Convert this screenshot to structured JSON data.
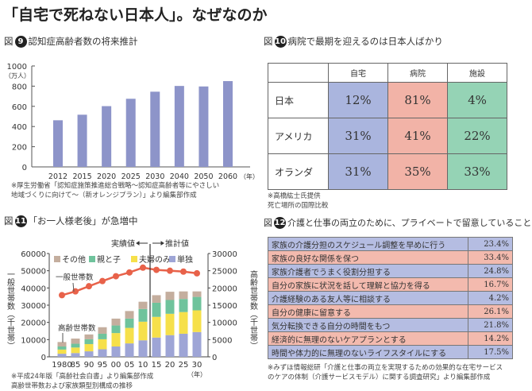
{
  "title": "「自宅で死ねない日本人」。なぜなのか",
  "fig_prefix": "図",
  "fig9": {
    "num": "9",
    "heading": "認知症高齢者数の将来推計",
    "unit": "（万人）",
    "caption1": "※厚生労働省「認知症施策推進総合戦略～認知症高齢者等にやさしい",
    "caption2": "地域づくりに向けて～（新オレンジプラン）」より編集部作成"
  },
  "fig10": {
    "num": "10",
    "heading": "病院で最期を迎えるのは日本人ばかり",
    "columns": [
      "",
      "自宅",
      "病院",
      "施設"
    ],
    "rows": [
      {
        "label": "日本",
        "values": [
          "12%",
          "81%",
          "4%"
        ]
      },
      {
        "label": "アメリカ",
        "values": [
          "31%",
          "41%",
          "22%"
        ]
      },
      {
        "label": "オランダ",
        "values": [
          "31%",
          "35%",
          "33%"
        ]
      }
    ],
    "colors": [
      "#aab5de",
      "#f2b3a7",
      "#95d3b5"
    ],
    "caption1": "※高橋紘士氏提供",
    "caption2": "死亡場所の国際比較"
  },
  "fig11": {
    "num": "11",
    "heading": "「お一人様老後」が急増中",
    "actual_label": "実績値",
    "forecast_label": "推計値",
    "line_label": "一般世帯数",
    "bar_label": "高齢世帯数",
    "caption1": "※平成24年版「高齢社会白書」より編集部作成",
    "caption2": "高齢世帯数および家族類型別構成の推移"
  },
  "fig12": {
    "num": "12",
    "heading": "介護と仕事の両立のために、プライベートで留意していること",
    "rows": [
      {
        "label": "家族の介護分担のスケジュール調整を早めに行う",
        "value": "23.4%"
      },
      {
        "label": "家族の良好な関係を保つ",
        "value": "33.4%"
      },
      {
        "label": "家族介護者でうまく役割分担する",
        "value": "24.8%"
      },
      {
        "label": "自分の家族に状況を話して理解と協力を得る",
        "value": "16.7%"
      },
      {
        "label": "介護経験のある友人等に相談する",
        "value": "4.2%"
      },
      {
        "label": "自分の健康に留意する",
        "value": "26.1%"
      },
      {
        "label": "気分転換できる自分の時間をもつ",
        "value": "21.8%"
      },
      {
        "label": "経済的に無理のないケアプランとする",
        "value": "14.2%"
      },
      {
        "label": "時間や体力的に無理のないライフスタイルにする",
        "value": "17.5%"
      }
    ],
    "colors": [
      "#b5bde2",
      "#f3baae"
    ],
    "caption1": "※みずほ情報総研「介護と仕事の両立を実現するための効果的な在宅サービス",
    "caption2": "のケアの体制（介護サービスモデル）に関する調査研究」より編集部作成"
  },
  "chart_data": [
    {
      "type": "bar",
      "categories": [
        "2012",
        "2015",
        "2020",
        "2025",
        "2030",
        "2040",
        "2050",
        "2060"
      ],
      "values": [
        462,
        517,
        602,
        675,
        745,
        802,
        797,
        850
      ],
      "ylabel": "（万人）",
      "xlabel": "（年）",
      "ylim": [
        0,
        1000
      ],
      "yticks": [
        0,
        200,
        400,
        600,
        800,
        1000
      ],
      "color": "#8d94c9",
      "grid": false
    },
    {
      "type": "bar+line",
      "categories": [
        "1980",
        "85",
        "90",
        "95",
        "00",
        "05",
        "10",
        "15",
        "20",
        "25",
        "30"
      ],
      "xlabel": "（年）",
      "ylabel_left": "一般世帯数（千世帯）",
      "ylabel_right": "高齢世帯数（千世帯）",
      "ylim_left": [
        0,
        60000
      ],
      "ylim_right": [
        0,
        30000
      ],
      "yticks_left": [
        0,
        10000,
        20000,
        30000,
        40000,
        50000,
        60000
      ],
      "yticks_right": [
        0,
        5000,
        10000,
        15000,
        20000,
        25000,
        30000
      ],
      "line": {
        "name": "一般世帯数",
        "axis": "left",
        "color": "#e8624a",
        "values": [
          35800,
          38000,
          41000,
          44000,
          46800,
          49000,
          51800,
          50500,
          50000,
          49500,
          48500
        ]
      },
      "series": [
        {
          "name": "単独",
          "axis": "right",
          "color": "#9ea5d6",
          "values": [
            900,
            1100,
            1600,
            2200,
            3000,
            3900,
            4800,
            5600,
            6300,
            6700,
            7200
          ]
        },
        {
          "name": "夫婦のみ",
          "axis": "right",
          "color": "#f6e04a",
          "values": [
            1200,
            1600,
            2100,
            2900,
            3900,
            4500,
            5400,
            6000,
            6200,
            6300,
            6300
          ]
        },
        {
          "name": "親と子",
          "axis": "right",
          "color": "#6fc39c",
          "values": [
            900,
            1100,
            1400,
            1600,
            2200,
            2700,
            3700,
            4100,
            4000,
            3800,
            3900
          ]
        },
        {
          "name": "その他",
          "axis": "right",
          "color": "#c4ae9e",
          "values": [
            1300,
            1500,
            1400,
            1900,
            2000,
            2200,
            2100,
            2200,
            2400,
            2200,
            1600
          ]
        }
      ],
      "legend_order": [
        "その他",
        "親と子",
        "夫婦のみ",
        "単独"
      ],
      "legend": "top",
      "grid": false
    }
  ]
}
